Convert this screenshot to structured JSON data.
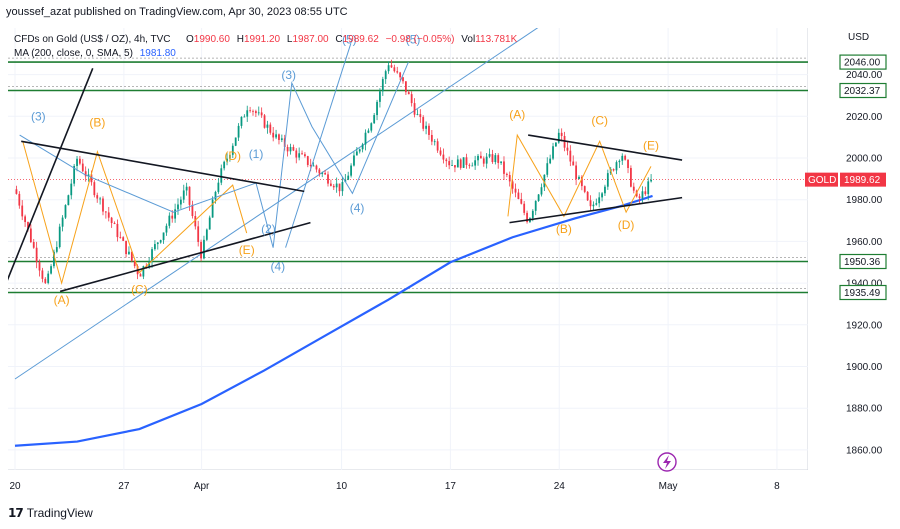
{
  "header": {
    "publisher_line": "youssef_azat published on TradingView.com, Apr 30, 2023 08:55 UTC"
  },
  "legend": {
    "instrument": "CFDs on Gold (US$ / OZ), 4h, TVC",
    "o_label": "O",
    "o_value": "1990.60",
    "h_label": "H",
    "h_value": "1991.20",
    "l_label": "L",
    "l_value": "1987.00",
    "c_label": "C",
    "c_value": "1989.62",
    "change": "−0.98 (−0.05%)",
    "vol_label": "Vol",
    "vol_value": "113.781K",
    "ma_label": "MA (200, close, 0, SMA, 5)",
    "ma_value": "1981.80"
  },
  "footer": {
    "brand": "TradingView",
    "brand_mark": "17"
  },
  "colors": {
    "up": "#089981",
    "down": "#f23645",
    "ma": "#2962ff",
    "wave_orange": "#f7a21b",
    "wave_blue": "#5b9bd5",
    "trendline": "#131722",
    "level_green": "#1e7d32",
    "price_tag": "#f23645"
  },
  "chart_data": {
    "type": "candlestick",
    "currency": "USD",
    "ylim": [
      1845,
      2058
    ],
    "y_ticks": [
      1860,
      1880,
      1900,
      1920,
      1940,
      1960,
      1980,
      2000,
      2020,
      2040
    ],
    "y_tick_labels": [
      "1860.00",
      "1880.00",
      "1900.00",
      "1920.00",
      "1940.00",
      "1960.00",
      "1980.00",
      "2000.00",
      "2020.00",
      "2040.00"
    ],
    "x_ticks": [
      {
        "label": "20",
        "day": 0
      },
      {
        "label": "27",
        "day": 7
      },
      {
        "label": "Apr",
        "day": 12
      },
      {
        "label": "10",
        "day": 21
      },
      {
        "label": "17",
        "day": 28
      },
      {
        "label": "24",
        "day": 35
      },
      {
        "label": "May",
        "day": 42
      },
      {
        "label": "8",
        "day": 49
      }
    ],
    "current_price": {
      "label": "GOLD",
      "value": "1989.62"
    },
    "horizontal_levels": [
      {
        "value": 2046.0,
        "label": "2046.00"
      },
      {
        "value": 2032.37,
        "label": "2032.37"
      },
      {
        "value": 1950.36,
        "label": "1950.36"
      },
      {
        "value": 1935.49,
        "label": "1935.49"
      }
    ],
    "ma_series": {
      "name": "MA 200",
      "points": [
        [
          0,
          1862
        ],
        [
          4,
          1864
        ],
        [
          8,
          1870
        ],
        [
          12,
          1882
        ],
        [
          16,
          1898
        ],
        [
          20,
          1915
        ],
        [
          24,
          1932
        ],
        [
          28,
          1950
        ],
        [
          32,
          1962
        ],
        [
          36,
          1971
        ],
        [
          39,
          1977
        ],
        [
          41,
          1981.8
        ]
      ]
    },
    "candle_path": [
      [
        0,
        1985
      ],
      [
        2,
        1938
      ],
      [
        4,
        2000
      ],
      [
        8,
        1944
      ],
      [
        11,
        1985
      ],
      [
        12,
        1953
      ],
      [
        13,
        1988
      ],
      [
        15,
        2026
      ],
      [
        17,
        2008
      ],
      [
        19,
        1997
      ],
      [
        21,
        1985
      ],
      [
        23,
        2020
      ],
      [
        24,
        2046
      ],
      [
        25,
        2035
      ],
      [
        26,
        2018
      ],
      [
        28,
        1997
      ],
      [
        31,
        2000
      ],
      [
        33,
        1970
      ],
      [
        35,
        2012
      ],
      [
        37,
        1975
      ],
      [
        39,
        2003
      ],
      [
        40,
        1979
      ],
      [
        41,
        1989.6
      ]
    ],
    "annotations": [
      {
        "text": "(A)",
        "color": "orange",
        "day": 3,
        "price": 1930
      },
      {
        "text": "(B)",
        "color": "orange",
        "day": 5.3,
        "price": 2015
      },
      {
        "text": "(C)",
        "color": "orange",
        "day": 8,
        "price": 1935
      },
      {
        "text": "(D)",
        "color": "orange",
        "day": 14.0,
        "price": 1999
      },
      {
        "text": "(E)",
        "color": "orange",
        "day": 14.9,
        "price": 1954
      },
      {
        "text": "(A)",
        "color": "orange",
        "day": 32.3,
        "price": 2019
      },
      {
        "text": "(B)",
        "color": "orange",
        "day": 35.3,
        "price": 1964
      },
      {
        "text": "(C)",
        "color": "orange",
        "day": 37.6,
        "price": 2016
      },
      {
        "text": "(D)",
        "color": "orange",
        "day": 39.3,
        "price": 1966
      },
      {
        "text": "(E)",
        "color": "orange",
        "day": 40.9,
        "price": 2004
      },
      {
        "text": "(3)",
        "color": "blue",
        "day": 1.5,
        "price": 2018
      },
      {
        "text": "(1)",
        "color": "blue",
        "day": 15.5,
        "price": 2000
      },
      {
        "text": "(2)",
        "color": "blue",
        "day": 16.3,
        "price": 1964
      },
      {
        "text": "(3)",
        "color": "blue",
        "day": 17.6,
        "price": 2038
      },
      {
        "text": "(4)",
        "color": "blue",
        "day": 16.9,
        "price": 1946
      },
      {
        "text": "(4)",
        "color": "blue",
        "day": 22,
        "price": 1974
      },
      {
        "text": "(5)",
        "color": "blue",
        "day": 21.5,
        "price": 2055
      },
      {
        "text": "(5)",
        "color": "blue",
        "day": 25.6,
        "price": 2055
      }
    ],
    "trendlines": [
      {
        "kind": "black",
        "from": [
          0.4,
          2008
        ],
        "to": [
          18.6,
          1984
        ]
      },
      {
        "kind": "black",
        "from": [
          2.9,
          1936
        ],
        "to": [
          19,
          1969
        ]
      },
      {
        "kind": "black",
        "from": [
          -1,
          1932
        ],
        "to": [
          5,
          2043
        ]
      },
      {
        "kind": "black",
        "from": [
          33,
          2011
        ],
        "to": [
          42.9,
          1999
        ]
      },
      {
        "kind": "black",
        "from": [
          31.8,
          1969
        ],
        "to": [
          42.9,
          1981
        ]
      },
      {
        "kind": "blue-channel",
        "from": [
          0,
          1894
        ],
        "to": [
          42.5,
          2107
        ]
      }
    ]
  }
}
